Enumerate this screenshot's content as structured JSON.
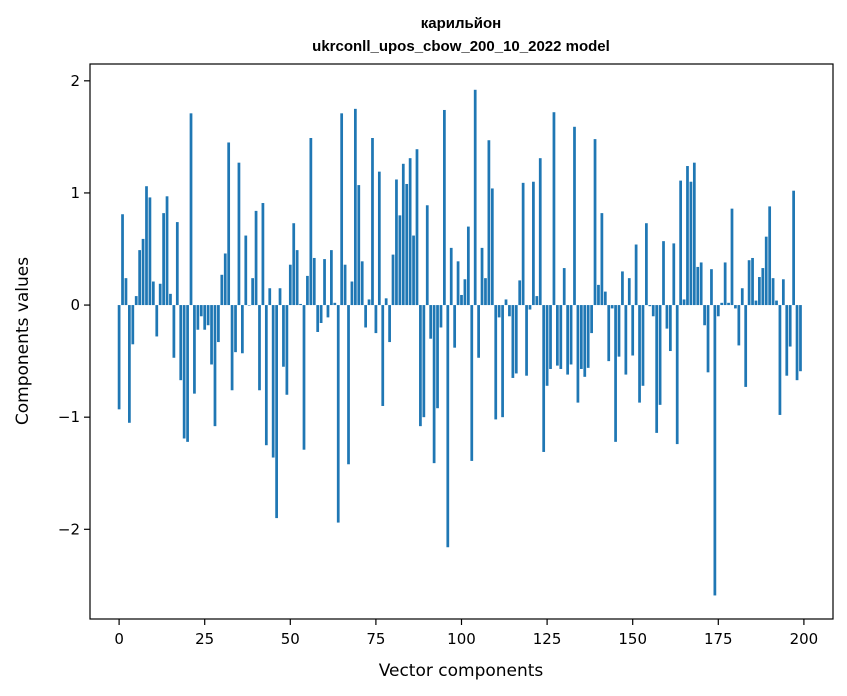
{
  "chart_data": {
    "type": "bar",
    "title": "карильйон",
    "subtitle": "ukrconll_upos_cbow_200_10_2022 model",
    "xlabel": "Vector components",
    "ylabel": "Components values",
    "xlim": [
      -8.5,
      208.5
    ],
    "ylim": [
      -2.8,
      2.15
    ],
    "xticks": [
      0,
      25,
      50,
      75,
      100,
      125,
      150,
      175,
      200
    ],
    "xtick_labels": [
      "0",
      "25",
      "50",
      "75",
      "100",
      "125",
      "150",
      "175",
      "200"
    ],
    "yticks": [
      -2,
      -1,
      0,
      1,
      2
    ],
    "ytick_labels": [
      "−2",
      "−1",
      "0",
      "1",
      "2"
    ],
    "bar_color": "#1f77b4",
    "grid": false,
    "legend": "none",
    "x": [
      0,
      1,
      2,
      3,
      4,
      5,
      6,
      7,
      8,
      9,
      10,
      11,
      12,
      13,
      14,
      15,
      16,
      17,
      18,
      19,
      20,
      21,
      22,
      23,
      24,
      25,
      26,
      27,
      28,
      29,
      30,
      31,
      32,
      33,
      34,
      35,
      36,
      37,
      38,
      39,
      40,
      41,
      42,
      43,
      44,
      45,
      46,
      47,
      48,
      49,
      50,
      51,
      52,
      53,
      54,
      55,
      56,
      57,
      58,
      59,
      60,
      61,
      62,
      63,
      64,
      65,
      66,
      67,
      68,
      69,
      70,
      71,
      72,
      73,
      74,
      75,
      76,
      77,
      78,
      79,
      80,
      81,
      82,
      83,
      84,
      85,
      86,
      87,
      88,
      89,
      90,
      91,
      92,
      93,
      94,
      95,
      96,
      97,
      98,
      99,
      100,
      101,
      102,
      103,
      104,
      105,
      106,
      107,
      108,
      109,
      110,
      111,
      112,
      113,
      114,
      115,
      116,
      117,
      118,
      119,
      120,
      121,
      122,
      123,
      124,
      125,
      126,
      127,
      128,
      129,
      130,
      131,
      132,
      133,
      134,
      135,
      136,
      137,
      138,
      139,
      140,
      141,
      142,
      143,
      144,
      145,
      146,
      147,
      148,
      149,
      150,
      151,
      152,
      153,
      154,
      155,
      156,
      157,
      158,
      159,
      160,
      161,
      162,
      163,
      164,
      165,
      166,
      167,
      168,
      169,
      170,
      171,
      172,
      173,
      174,
      175,
      176,
      177,
      178,
      179,
      180,
      181,
      182,
      183,
      184,
      185,
      186,
      187,
      188,
      189,
      190,
      191,
      192,
      193,
      194,
      195,
      196,
      197,
      198,
      199
    ],
    "values": [
      -0.93,
      0.81,
      0.24,
      -1.05,
      -0.35,
      0.08,
      0.49,
      0.59,
      1.06,
      0.96,
      0.21,
      -0.28,
      0.19,
      0.82,
      0.97,
      0.1,
      -0.47,
      0.74,
      -0.67,
      -1.19,
      -1.22,
      1.71,
      -0.79,
      -0.22,
      -0.1,
      -0.22,
      -0.18,
      -0.53,
      -1.08,
      -0.33,
      0.27,
      0.46,
      1.45,
      -0.76,
      -0.42,
      1.27,
      -0.43,
      0.62,
      0.0,
      0.24,
      0.84,
      -0.76,
      0.91,
      -1.25,
      0.15,
      -1.36,
      -1.9,
      0.15,
      -0.55,
      -0.8,
      0.36,
      0.73,
      0.49,
      0.01,
      -1.29,
      0.26,
      1.49,
      0.42,
      -0.24,
      -0.16,
      0.41,
      -0.11,
      0.49,
      0.02,
      -1.94,
      1.71,
      0.36,
      -1.42,
      0.21,
      1.75,
      1.07,
      0.39,
      -0.2,
      0.05,
      1.49,
      -0.25,
      1.19,
      -0.9,
      0.06,
      -0.33,
      0.45,
      1.12,
      0.8,
      1.26,
      1.08,
      1.31,
      0.62,
      1.39,
      -1.08,
      -1.0,
      0.89,
      -0.3,
      -1.41,
      -0.92,
      -0.2,
      1.74,
      -2.16,
      0.51,
      -0.38,
      0.39,
      0.09,
      0.23,
      0.7,
      -1.39,
      1.92,
      -0.47,
      0.51,
      0.24,
      1.47,
      1.04,
      -1.02,
      -0.11,
      -1.0,
      0.05,
      -0.1,
      -0.65,
      -0.61,
      0.22,
      1.09,
      -0.63,
      -0.04,
      1.1,
      0.08,
      1.31,
      -1.31,
      -0.72,
      -0.57,
      1.72,
      -0.54,
      -0.57,
      0.33,
      -0.62,
      -0.53,
      1.59,
      -0.87,
      -0.57,
      -0.64,
      -0.56,
      -0.25,
      1.48,
      0.18,
      0.82,
      0.12,
      -0.5,
      -0.03,
      -1.22,
      -0.46,
      0.3,
      -0.62,
      0.24,
      -0.45,
      0.54,
      -0.87,
      -0.72,
      0.73,
      -0.01,
      -0.1,
      -1.14,
      -0.89,
      0.57,
      -0.21,
      -0.41,
      0.55,
      -1.24,
      1.11,
      0.05,
      1.24,
      1.1,
      1.27,
      0.34,
      0.38,
      -0.18,
      -0.6,
      0.32,
      -2.59,
      -0.1,
      0.02,
      0.38,
      0.02,
      0.86,
      -0.03,
      -0.36,
      0.15,
      -0.73,
      0.4,
      0.42,
      0.04,
      0.25,
      0.33,
      0.61,
      0.88,
      0.24,
      0.04,
      -0.98,
      0.23,
      -0.63,
      -0.37,
      1.02,
      -0.67,
      -0.59
    ]
  }
}
